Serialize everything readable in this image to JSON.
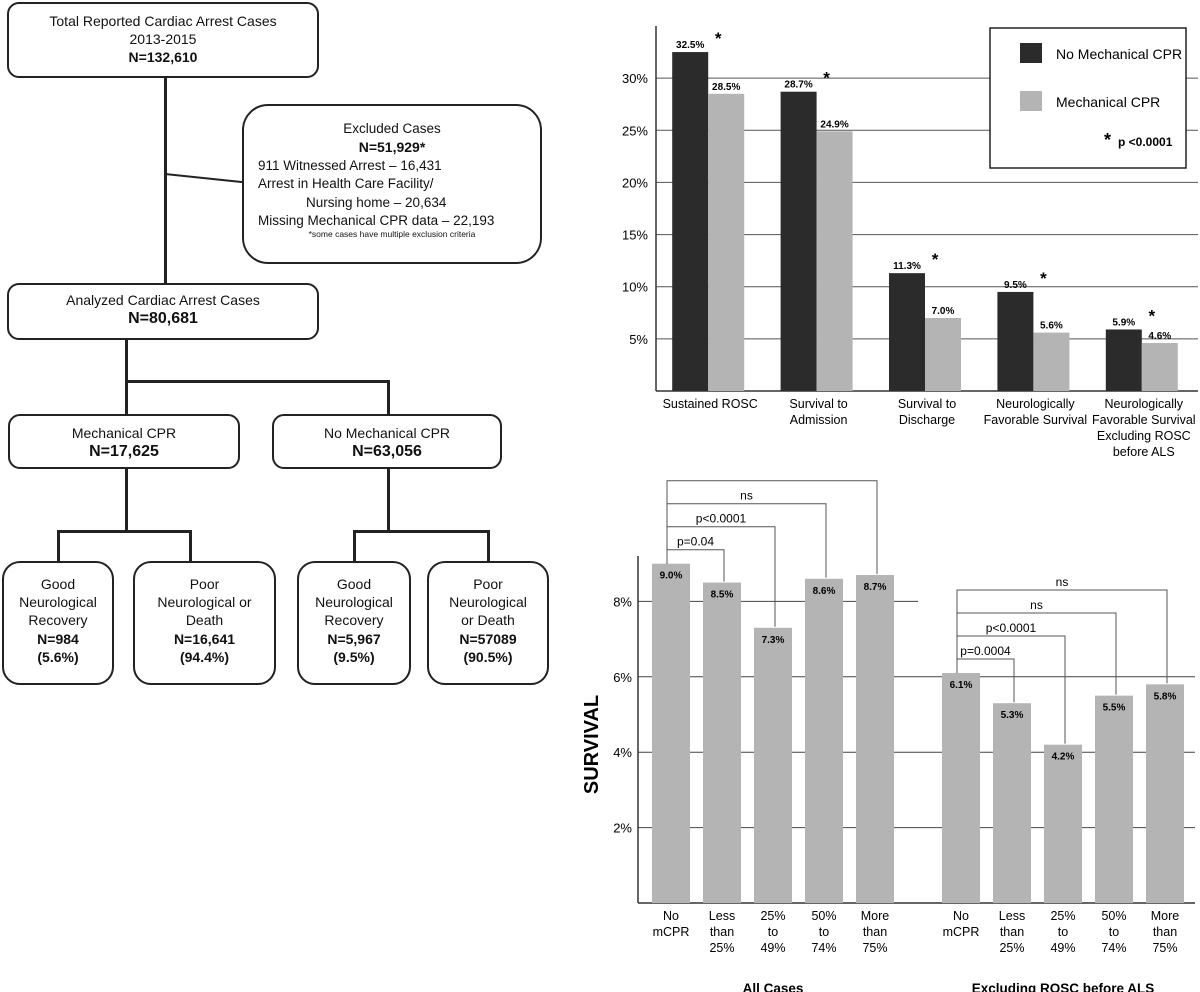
{
  "flowchart": {
    "total": {
      "line1": "Total Reported Cardiac Arrest Cases",
      "line2": "2013-2015",
      "n": "N=132,610"
    },
    "excluded": {
      "title": "Excluded Cases",
      "n": "N=51,929*",
      "items": [
        "911 Witnessed Arrest – 16,431",
        "Arrest in Health Care Facility/",
        "Nursing home – 20,634",
        "Missing Mechanical CPR data – 22,193"
      ],
      "note": "*some cases have multiple  exclusion criteria"
    },
    "analyzed": {
      "title": "Analyzed Cardiac Arrest Cases",
      "n": "N=80,681"
    },
    "mech": {
      "title": "Mechanical CPR",
      "n": "N=17,625"
    },
    "nomech": {
      "title": "No Mechanical CPR",
      "n": "N=63,056"
    },
    "outcomes": [
      {
        "l1": "Good",
        "l2": "Neurological",
        "l3": "Recovery",
        "n": "N=984",
        "pct": "(5.6%)"
      },
      {
        "l1": "Poor",
        "l2": "Neurological or",
        "l3": "Death",
        "n": "N=16,641",
        "pct": "(94.4%)"
      },
      {
        "l1": "Good",
        "l2": "Neurological",
        "l3": "Recovery",
        "n": "N=5,967",
        "pct": "(9.5%)"
      },
      {
        "l1": "Poor",
        "l2": "Neurological",
        "l3": "or Death",
        "n": "N=57089",
        "pct": "(90.5%)"
      }
    ]
  },
  "chart_data": [
    {
      "type": "bar",
      "title": "",
      "ylim": [
        0,
        35
      ],
      "yticks": [
        "5%",
        "10%",
        "15%",
        "20%",
        "25%",
        "30%"
      ],
      "ytick_values": [
        5,
        10,
        15,
        20,
        25,
        30
      ],
      "categories": [
        [
          "Sustained ROSC"
        ],
        [
          "Survival to",
          "Admission"
        ],
        [
          "Survival to",
          "Discharge"
        ],
        [
          "Neurologically",
          "Favorable Survival"
        ],
        [
          "Neurologically",
          "Favorable Survival",
          "Excluding ROSC",
          "before ALS"
        ]
      ],
      "series": [
        {
          "name": "No Mechanical CPR",
          "color": "#2b2b2b",
          "values": [
            32.5,
            28.7,
            11.3,
            9.5,
            5.9
          ],
          "labels": [
            "32.5%",
            "28.7%",
            "11.3%",
            "9.5%",
            "5.9%"
          ]
        },
        {
          "name": "Mechanical CPR",
          "color": "#b4b4b4",
          "values": [
            28.5,
            24.9,
            7.0,
            5.6,
            4.6
          ],
          "labels": [
            "28.5%",
            "24.9%",
            "7.0%",
            "5.6%",
            "4.6%"
          ]
        }
      ],
      "significance": [
        "*",
        "*",
        "*",
        "*",
        "*"
      ],
      "legend": {
        "items": [
          "No Mechanical CPR",
          "Mechanical CPR"
        ],
        "note_star": "*",
        "note": "p <0.0001",
        "position": "top-right"
      }
    },
    {
      "type": "bar",
      "ylabel": "SURVIVAL",
      "ylim": [
        0,
        10
      ],
      "yticks": [
        "2%",
        "4%",
        "6%",
        "8%"
      ],
      "ytick_values": [
        2,
        4,
        6,
        8
      ],
      "bar_color": "#b4b4b4",
      "groups": [
        {
          "name": "All Cases",
          "categories": [
            [
              "No",
              "mCPR"
            ],
            [
              "Less",
              "than",
              "25%"
            ],
            [
              "25%",
              "to",
              "49%"
            ],
            [
              "50%",
              "to",
              "74%"
            ],
            [
              "More",
              "than",
              "75%"
            ]
          ],
          "values": [
            9.0,
            8.5,
            7.3,
            8.6,
            8.7
          ],
          "labels": [
            "9.0%",
            "8.5%",
            "7.3%",
            "8.6%",
            "8.7%"
          ],
          "comparisons": [
            "p=0.04",
            "p<0.0001",
            "ns",
            "ns"
          ]
        },
        {
          "name": "Excluding ROSC before ALS",
          "categories": [
            [
              "No",
              "mCPR"
            ],
            [
              "Less",
              "than",
              "25%"
            ],
            [
              "25%",
              "to",
              "49%"
            ],
            [
              "50%",
              "to",
              "74%"
            ],
            [
              "More",
              "than",
              "75%"
            ]
          ],
          "values": [
            6.1,
            5.3,
            4.2,
            5.5,
            5.8
          ],
          "labels": [
            "6.1%",
            "5.3%",
            "4.2%",
            "5.5%",
            "5.8%"
          ],
          "comparisons": [
            "p=0.0004",
            "p<0.0001",
            "ns",
            "ns"
          ]
        }
      ]
    }
  ]
}
